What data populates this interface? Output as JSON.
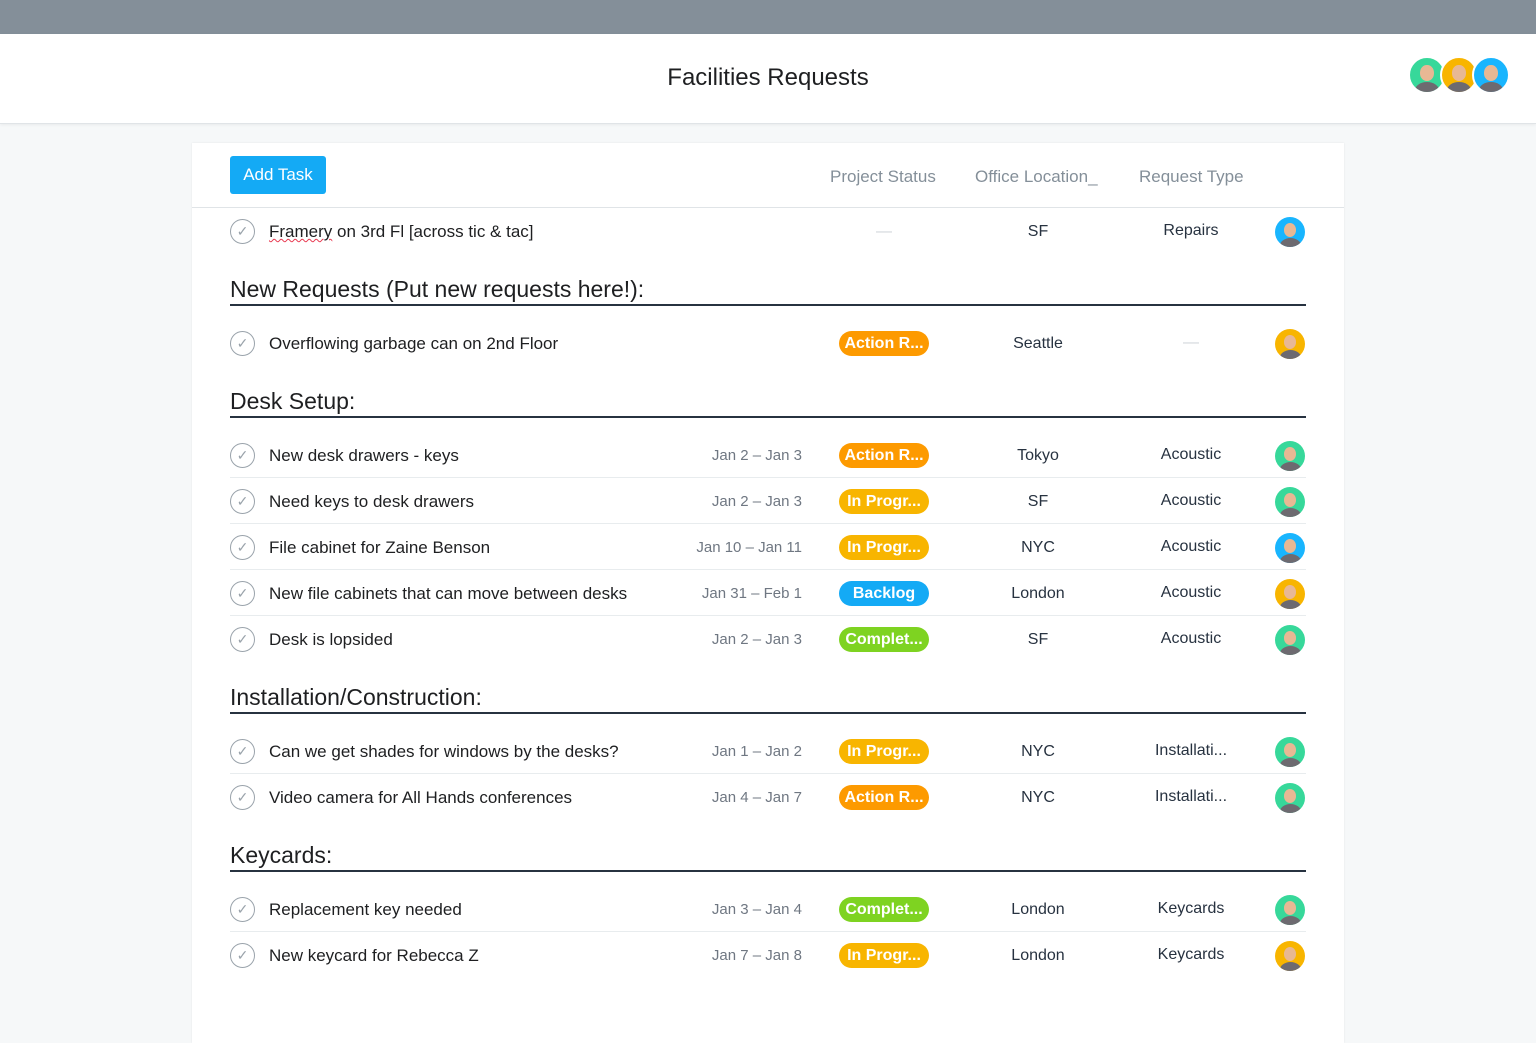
{
  "header": {
    "title": "Facilities Requests",
    "members": [
      {
        "color": "#37d89a"
      },
      {
        "color": "#f8b500"
      },
      {
        "color": "#19b5fe"
      }
    ]
  },
  "toolbar": {
    "add_task": "Add Task",
    "columns": [
      "Project Status",
      "Office Location_",
      "Request Type"
    ]
  },
  "status_colors": {
    "Action R...": "#fd9a00",
    "In Progr...": "#f8b500",
    "Backlog": "#14aaf5",
    "Complet...": "#7ed321"
  },
  "empty": "—",
  "top_task": {
    "name_parts": [
      "Framery",
      " on 3rd Fl [across tic & tac]"
    ],
    "date": "",
    "status": "",
    "location": "SF",
    "type": "Repairs",
    "avatar": "#19b5fe"
  },
  "sections": [
    {
      "title": "New Requests (Put new requests here!):",
      "tasks": [
        {
          "name": "Overflowing garbage can on 2nd Floor",
          "date": "",
          "status": "Action R...",
          "location": "Seattle",
          "type": "",
          "avatar": "#f8b500"
        }
      ]
    },
    {
      "title": "Desk Setup:",
      "tasks": [
        {
          "name": "New desk drawers - keys",
          "date": "Jan 2 – Jan 3",
          "status": "Action R...",
          "location": "Tokyo",
          "type": "Acoustic",
          "avatar": "#37d89a"
        },
        {
          "name": "Need keys to desk drawers",
          "date": "Jan 2 – Jan 3",
          "status": "In Progr...",
          "location": "SF",
          "type": "Acoustic",
          "avatar": "#37d89a"
        },
        {
          "name": "File cabinet for Zaine Benson",
          "date": "Jan 10 – Jan 11",
          "status": "In Progr...",
          "location": "NYC",
          "type": "Acoustic",
          "avatar": "#19b5fe"
        },
        {
          "name": "New file cabinets that can move between desks",
          "date": "Jan 31 – Feb 1",
          "status": "Backlog",
          "location": "London",
          "type": "Acoustic",
          "avatar": "#f8b500"
        },
        {
          "name": "Desk is lopsided",
          "date": "Jan 2 – Jan 3",
          "status": "Complet...",
          "location": "SF",
          "type": "Acoustic",
          "avatar": "#37d89a"
        }
      ]
    },
    {
      "title": "Installation/Construction:",
      "tasks": [
        {
          "name": "Can we get shades for windows by the desks?",
          "date": "Jan 1 – Jan 2",
          "status": "In Progr...",
          "location": "NYC",
          "type": "Installati...",
          "avatar": "#37d89a"
        },
        {
          "name": "Video camera for All Hands conferences",
          "date": "Jan 4 – Jan 7",
          "status": "Action R...",
          "location": "NYC",
          "type": "Installati...",
          "avatar": "#37d89a"
        }
      ]
    },
    {
      "title": "Keycards:",
      "tasks": [
        {
          "name": "Replacement key needed",
          "date": "Jan 3 – Jan 4",
          "status": "Complet...",
          "location": "London",
          "type": "Keycards",
          "avatar": "#37d89a"
        },
        {
          "name": "New keycard for Rebecca Z",
          "date": "Jan 7 – Jan 8",
          "status": "In Progr...",
          "location": "London",
          "type": "Keycards",
          "avatar": "#f8b500"
        }
      ]
    }
  ]
}
